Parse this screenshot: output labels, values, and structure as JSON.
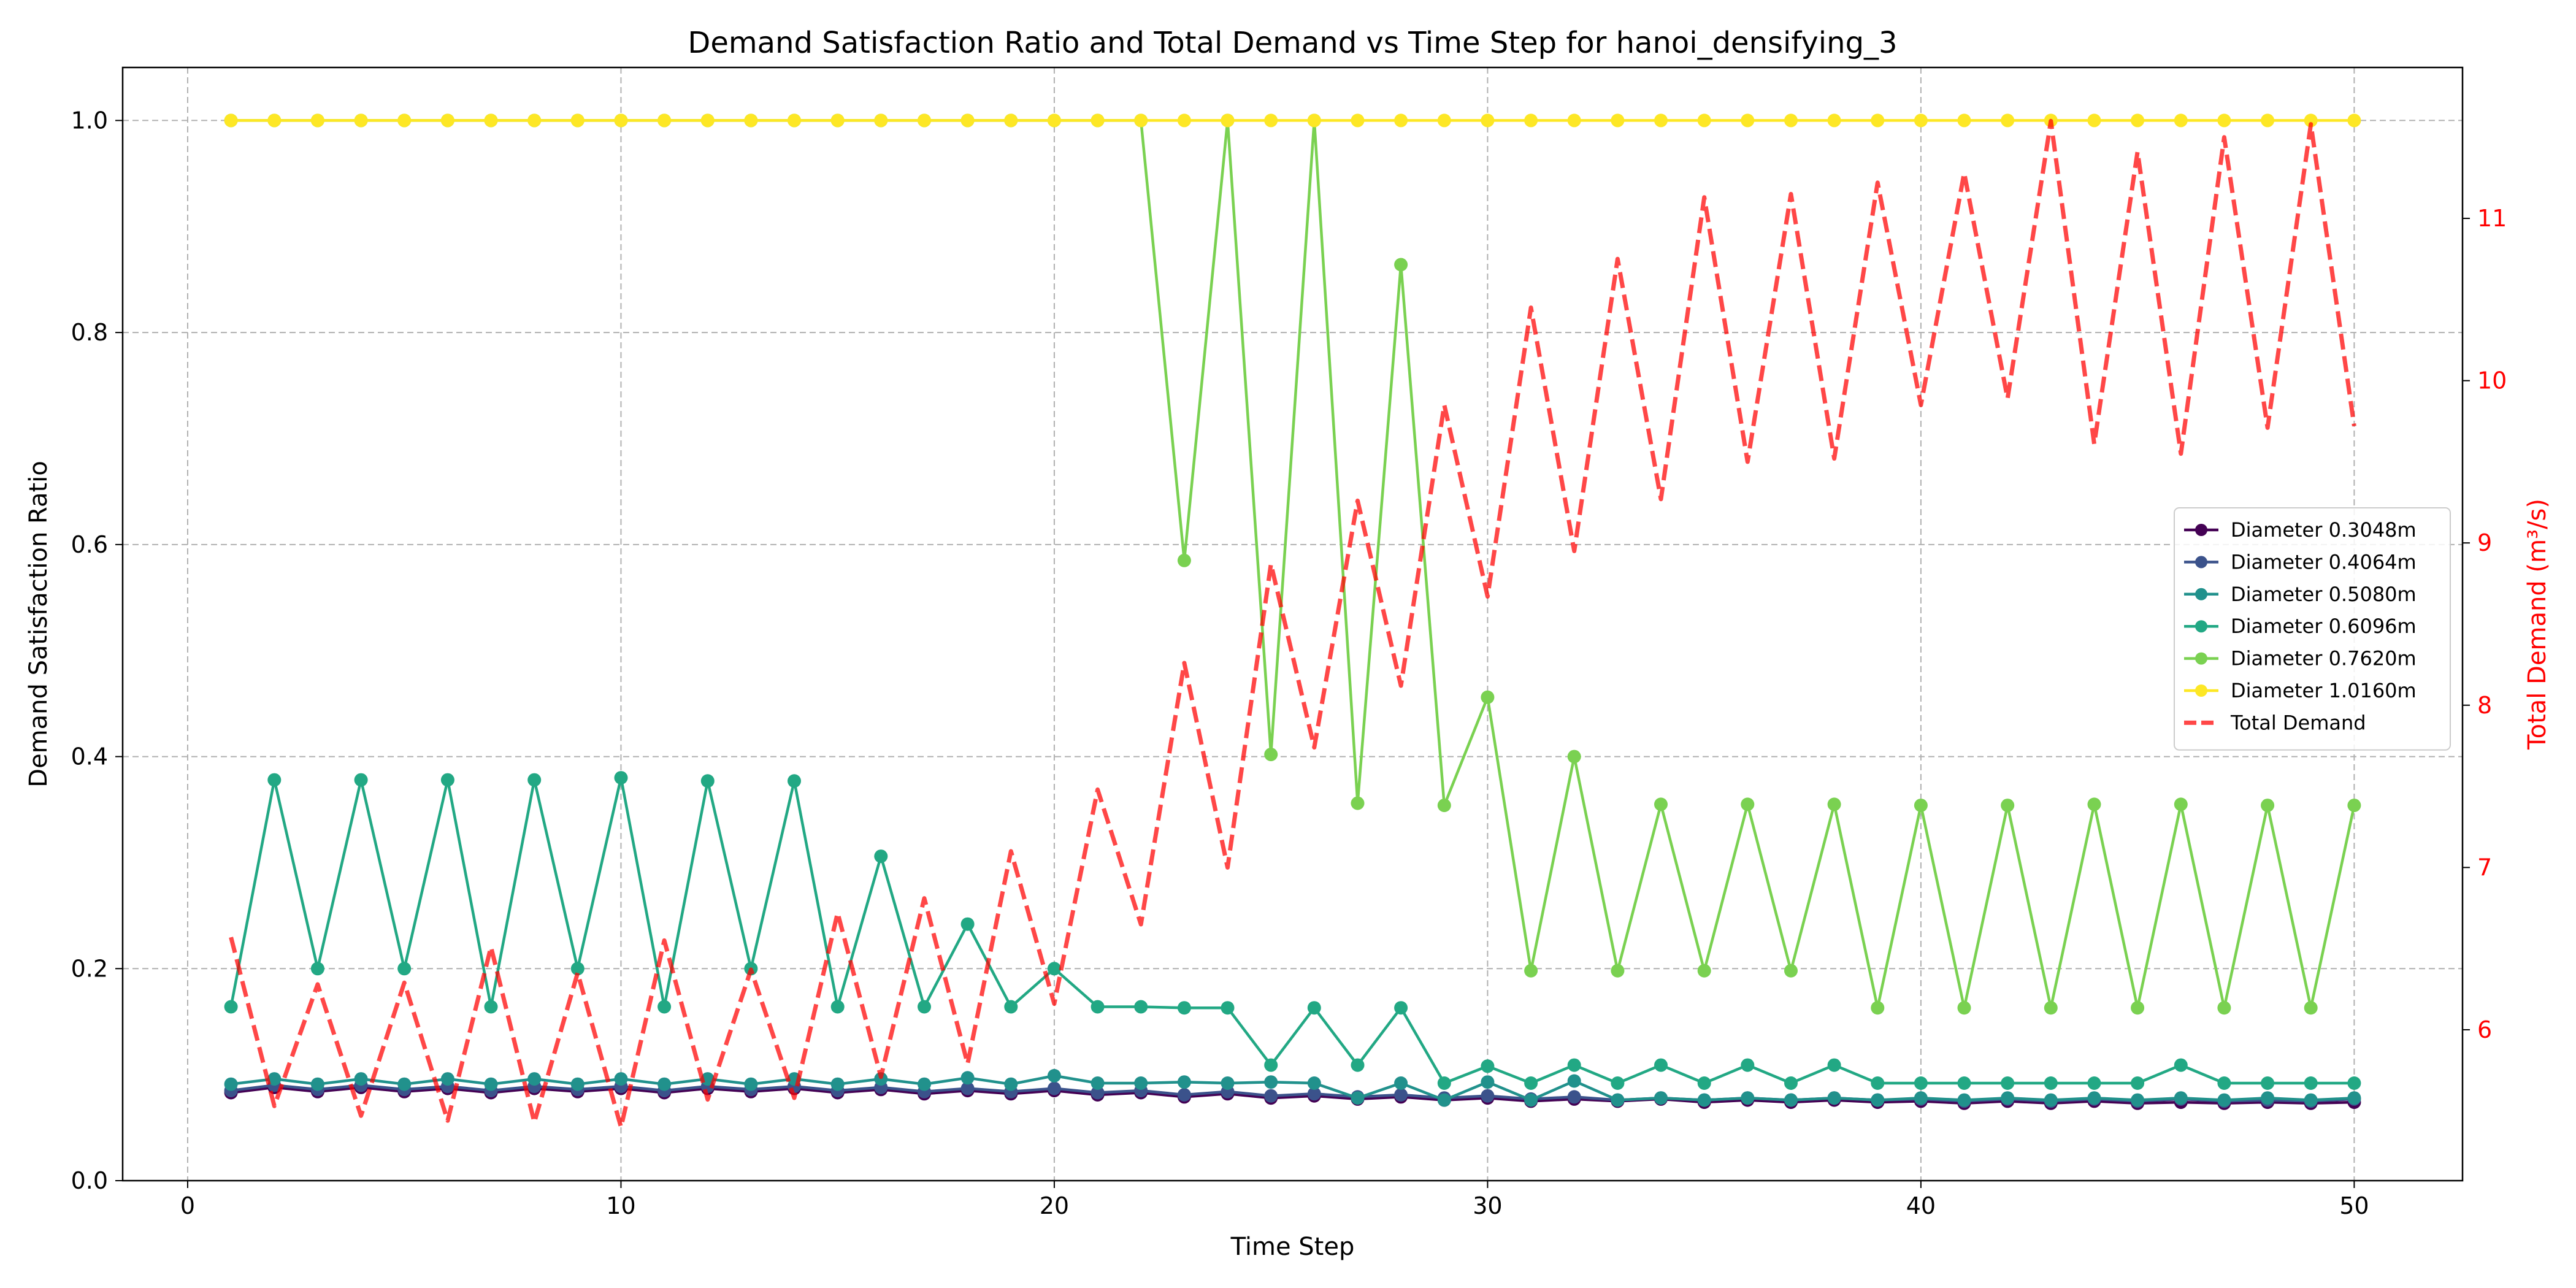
{
  "chart_data": {
    "type": "line",
    "title": "Demand Satisfaction Ratio and Total Demand vs Time Step for hanoi_densifying_3",
    "xlabel": "Time Step",
    "ylabel": "Demand Satisfaction Ratio",
    "y2label": "Total Demand (m³/s)",
    "xlim": [
      -1.5,
      52.5
    ],
    "ylim": [
      0,
      1.05
    ],
    "y2lim": [
      5.07,
      11.93
    ],
    "xticks": [
      0,
      10,
      20,
      30,
      40,
      50
    ],
    "yticks": [
      0.0,
      0.2,
      0.4,
      0.6,
      0.8,
      1.0
    ],
    "y2ticks": [
      6,
      7,
      8,
      9,
      10,
      11
    ],
    "grid": true,
    "legend_position": "center-right",
    "x": [
      1,
      2,
      3,
      4,
      5,
      6,
      7,
      8,
      9,
      10,
      11,
      12,
      13,
      14,
      15,
      16,
      17,
      18,
      19,
      20,
      21,
      22,
      23,
      24,
      25,
      26,
      27,
      28,
      29,
      30,
      31,
      32,
      33,
      34,
      35,
      36,
      37,
      38,
      39,
      40,
      41,
      42,
      43,
      44,
      45,
      46,
      47,
      48,
      49,
      50
    ],
    "series": [
      {
        "name": "Diameter 0.3048m",
        "axis": "left",
        "color": "#440154",
        "values": [
          0.083,
          0.088,
          0.084,
          0.088,
          0.084,
          0.087,
          0.083,
          0.087,
          0.084,
          0.087,
          0.083,
          0.087,
          0.084,
          0.087,
          0.083,
          0.086,
          0.082,
          0.085,
          0.082,
          0.085,
          0.081,
          0.083,
          0.079,
          0.082,
          0.078,
          0.08,
          0.077,
          0.079,
          0.076,
          0.078,
          0.075,
          0.077,
          0.075,
          0.077,
          0.074,
          0.076,
          0.074,
          0.076,
          0.074,
          0.075,
          0.073,
          0.075,
          0.073,
          0.075,
          0.073,
          0.074,
          0.073,
          0.074,
          0.073,
          0.074
        ]
      },
      {
        "name": "Diameter 0.4064m",
        "axis": "left",
        "color": "#3b528b",
        "values": [
          0.085,
          0.09,
          0.086,
          0.09,
          0.086,
          0.089,
          0.085,
          0.089,
          0.086,
          0.089,
          0.085,
          0.089,
          0.086,
          0.089,
          0.085,
          0.088,
          0.084,
          0.087,
          0.084,
          0.087,
          0.083,
          0.085,
          0.081,
          0.084,
          0.08,
          0.082,
          0.079,
          0.081,
          0.078,
          0.08,
          0.077,
          0.079,
          0.076,
          0.078,
          0.076,
          0.078,
          0.076,
          0.078,
          0.076,
          0.077,
          0.075,
          0.077,
          0.075,
          0.077,
          0.075,
          0.077,
          0.075,
          0.076,
          0.075,
          0.077
        ]
      },
      {
        "name": "Diameter 0.5080m",
        "axis": "left",
        "color": "#21918c",
        "values": [
          0.091,
          0.096,
          0.091,
          0.096,
          0.091,
          0.096,
          0.091,
          0.096,
          0.091,
          0.096,
          0.091,
          0.096,
          0.091,
          0.096,
          0.091,
          0.096,
          0.091,
          0.097,
          0.091,
          0.099,
          0.092,
          0.092,
          0.093,
          0.092,
          0.093,
          0.092,
          0.078,
          0.092,
          0.076,
          0.093,
          0.076,
          0.094,
          0.076,
          0.078,
          0.076,
          0.078,
          0.076,
          0.078,
          0.076,
          0.078,
          0.076,
          0.078,
          0.076,
          0.078,
          0.076,
          0.078,
          0.076,
          0.078,
          0.076,
          0.078
        ]
      },
      {
        "name": "Diameter 0.6096m",
        "axis": "left",
        "color": "#22a884",
        "values": [
          0.164,
          0.378,
          0.2,
          0.378,
          0.2,
          0.378,
          0.164,
          0.378,
          0.2,
          0.38,
          0.164,
          0.377,
          0.2,
          0.377,
          0.164,
          0.306,
          0.164,
          0.242,
          0.164,
          0.2,
          0.164,
          0.164,
          0.163,
          0.163,
          0.109,
          0.163,
          0.109,
          0.163,
          0.092,
          0.108,
          0.092,
          0.109,
          0.092,
          0.109,
          0.092,
          0.109,
          0.092,
          0.109,
          0.092,
          0.092,
          0.092,
          0.092,
          0.092,
          0.092,
          0.092,
          0.109,
          0.092,
          0.092,
          0.092,
          0.092
        ]
      },
      {
        "name": "Diameter 0.7620m",
        "axis": "left",
        "color": "#7ad151",
        "values": [
          1.0,
          1.0,
          1.0,
          1.0,
          1.0,
          1.0,
          1.0,
          1.0,
          1.0,
          1.0,
          1.0,
          1.0,
          1.0,
          1.0,
          1.0,
          1.0,
          1.0,
          1.0,
          1.0,
          1.0,
          1.0,
          1.0,
          0.585,
          1.0,
          0.402,
          1.0,
          0.356,
          0.864,
          0.354,
          0.456,
          0.198,
          0.4,
          0.198,
          0.355,
          0.198,
          0.355,
          0.198,
          0.355,
          0.163,
          0.354,
          0.163,
          0.354,
          0.163,
          0.355,
          0.163,
          0.355,
          0.163,
          0.354,
          0.163,
          0.354
        ]
      },
      {
        "name": "Diameter 1.0160m",
        "axis": "left",
        "color": "#fde725",
        "values": [
          1.0,
          1.0,
          1.0,
          1.0,
          1.0,
          1.0,
          1.0,
          1.0,
          1.0,
          1.0,
          1.0,
          1.0,
          1.0,
          1.0,
          1.0,
          1.0,
          1.0,
          1.0,
          1.0,
          1.0,
          1.0,
          1.0,
          1.0,
          1.0,
          1.0,
          1.0,
          1.0,
          1.0,
          1.0,
          1.0,
          1.0,
          1.0,
          1.0,
          1.0,
          1.0,
          1.0,
          1.0,
          1.0,
          1.0,
          1.0,
          1.0,
          1.0,
          1.0,
          1.0,
          1.0,
          1.0,
          1.0,
          1.0,
          1.0,
          1.0
        ]
      },
      {
        "name": "Total Demand",
        "axis": "right",
        "color": "#ff0000",
        "dashed": true,
        "values": [
          6.57,
          5.53,
          6.28,
          5.47,
          6.29,
          5.44,
          6.51,
          5.43,
          6.35,
          5.4,
          6.55,
          5.57,
          6.37,
          5.58,
          6.72,
          5.71,
          6.81,
          5.79,
          7.1,
          6.16,
          7.48,
          6.65,
          8.26,
          7.0,
          8.87,
          7.74,
          9.26,
          8.12,
          9.85,
          8.67,
          10.45,
          8.95,
          10.75,
          9.27,
          11.13,
          9.5,
          11.15,
          9.52,
          11.22,
          9.85,
          11.28,
          9.89,
          11.6,
          9.61,
          11.41,
          9.55,
          11.5,
          9.71,
          11.58,
          9.72
        ]
      }
    ]
  }
}
